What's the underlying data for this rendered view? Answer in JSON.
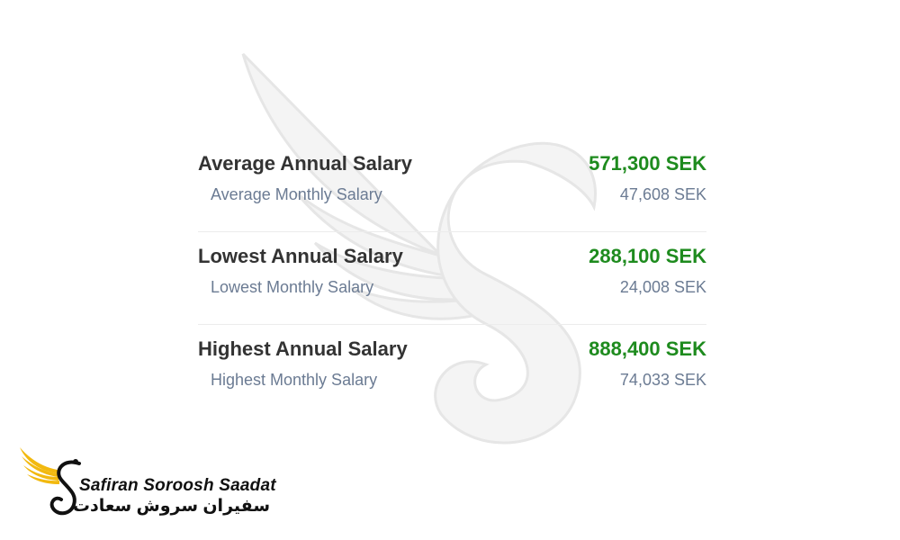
{
  "salaries": [
    {
      "annual_label": "Average Annual Salary",
      "annual_value": "571,300 SEK",
      "monthly_label": "Average Monthly Salary",
      "monthly_value": "47,608 SEK"
    },
    {
      "annual_label": "Lowest Annual Salary",
      "annual_value": "288,100 SEK",
      "monthly_label": "Lowest Monthly Salary",
      "monthly_value": "24,008 SEK"
    },
    {
      "annual_label": "Highest Annual Salary",
      "annual_value": "888,400 SEK",
      "monthly_label": "Highest Monthly Salary",
      "monthly_value": "74,033 SEK"
    }
  ],
  "logo": {
    "latin": "Safiran Soroosh Saadat",
    "persian": "سفیران سروش سعادت",
    "icon": "winged-s-icon"
  },
  "colors": {
    "annual_value": "#1e8b1e",
    "label": "#333333",
    "monthly": "#6b7b93",
    "logo_gold": "#f2b90f"
  }
}
